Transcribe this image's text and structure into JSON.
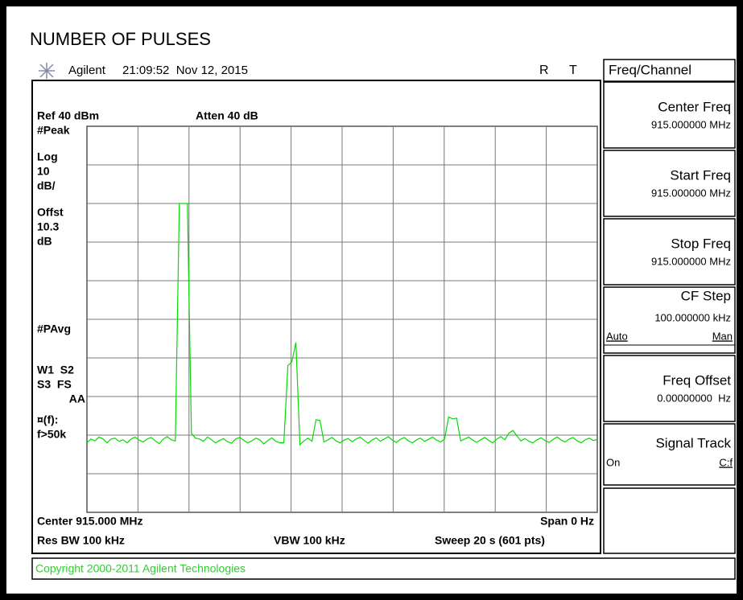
{
  "header": {
    "title": "NUMBER OF PULSES",
    "instrument": "Agilent",
    "timestamp": "21:09:52  Nov 12, 2015",
    "flag_r": "R",
    "flag_t": "T"
  },
  "display": {
    "ref": "Ref 40 dBm",
    "atten": "Atten 40 dB",
    "left_labels": [
      "#Peak",
      "Log",
      "10",
      "dB/",
      "Offst",
      "10.3",
      "dB",
      "#PAvg",
      "W1  S2",
      "S3  FS",
      "AA",
      "¤(f):",
      "f>50k"
    ],
    "center": "Center 915.000 MHz",
    "span": "Span 0 Hz",
    "res_bw": "Res BW 100 kHz",
    "vbw": "VBW 100 kHz",
    "sweep": "Sweep 20 s (601 pts)"
  },
  "trace": {
    "color": "#00dd00",
    "ylim": [
      -60,
      40
    ],
    "values": [
      -42,
      -41,
      -41.5,
      -40.5,
      -41,
      -42,
      -41,
      -40.8,
      -41.6,
      -41.2,
      -42,
      -41,
      -40.5,
      -41.3,
      -41.8,
      -41,
      -40.6,
      -41.5,
      -42.2,
      -41,
      -40.4,
      -41.2,
      -41.5,
      20,
      20,
      20,
      -39.5,
      -40.8,
      -41,
      -41.6,
      -40.5,
      -41.2,
      -42,
      -41.4,
      -40.9,
      -41.7,
      -42.1,
      -41,
      -40.6,
      -41.3,
      -42,
      -41.5,
      -40.8,
      -41.2,
      -42.3,
      -41.4,
      -40.7,
      -41.6,
      -42,
      -42,
      -22,
      -21,
      -16,
      -42.5,
      -41.5,
      -40.8,
      -41.6,
      -36,
      -36.2,
      -41.8,
      -41.2,
      -40.6,
      -41.5,
      -42,
      -41.3,
      -40.9,
      -41.7,
      -41,
      -40.5,
      -41.4,
      -42.1,
      -41.2,
      -40.7,
      -41.6,
      -41,
      -40.4,
      -41.3,
      -41.9,
      -41.1,
      -40.6,
      -41.5,
      -42,
      -41.2,
      -40.8,
      -41.6,
      -41.1,
      -40.5,
      -41.3,
      -41.8,
      -41,
      -35.3,
      -35.8,
      -35.6,
      -41.5,
      -41,
      -40.5,
      -41.3,
      -41.9,
      -41.2,
      -40.6,
      -41.4,
      -42,
      -41,
      -40.4,
      -41.2,
      -39.5,
      -38.8,
      -40.2,
      -41.5,
      -40.9,
      -41.6,
      -42,
      -41.2,
      -40.7,
      -41.4,
      -41.9,
      -41.1,
      -40.5,
      -41.3,
      -41.8,
      -41,
      -40.6,
      -41.5,
      -42,
      -41.2,
      -40.8,
      -41.4,
      -41.1
    ]
  },
  "menu": {
    "title": "Freq/Channel",
    "keys": [
      {
        "label": "Center Freq",
        "value": "915.000000 MHz"
      },
      {
        "label": "Start Freq",
        "value": "915.000000 MHz"
      },
      {
        "label": "Stop Freq",
        "value": "915.000000 MHz"
      },
      {
        "label": "CF Step",
        "value": "100.000000 kHz",
        "left": "Auto",
        "right": "Man"
      },
      {
        "label": "Freq Offset",
        "value": "0.00000000  Hz"
      },
      {
        "label": "Signal Track",
        "left": "On",
        "right": "C:f"
      }
    ]
  },
  "footer": {
    "copyright": "Copyright 2000-2011 Agilent Technologies"
  }
}
